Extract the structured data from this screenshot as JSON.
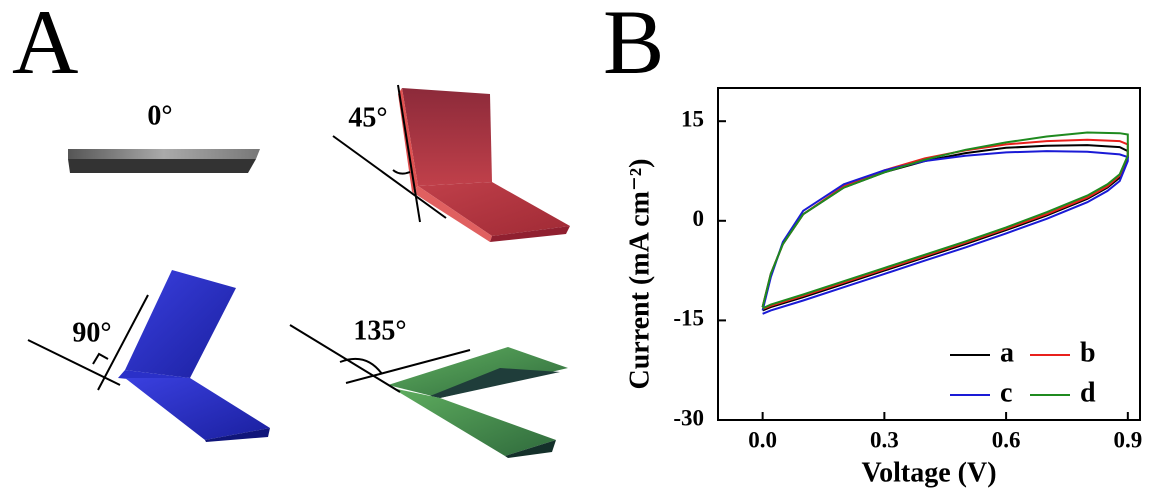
{
  "panel_labels": [
    "A",
    "B"
  ],
  "angle_labels": [
    "0°",
    "45°",
    "90°",
    "135°"
  ],
  "chart_data": {
    "type": "line",
    "x_label": "Voltage (V)",
    "y_label": "Current (mA cm⁻²)",
    "x": [
      0,
      0.02,
      0.05,
      0.1,
      0.2,
      0.3,
      0.4,
      0.5,
      0.6,
      0.7,
      0.8,
      0.88,
      0.9,
      0.9,
      0.88,
      0.85,
      0.8,
      0.7,
      0.6,
      0.5,
      0.4,
      0.3,
      0.2,
      0.1,
      0.02,
      0
    ],
    "series": [
      {
        "name": "a",
        "color": "#000000",
        "values": [
          -13,
          -8,
          -3.5,
          1,
          5,
          7.3,
          9,
          10.2,
          11,
          11.3,
          11.4,
          11.1,
          10.5,
          9.5,
          6.5,
          5,
          3.3,
          0.8,
          -1.4,
          -3.5,
          -5.5,
          -7.5,
          -9.5,
          -11.5,
          -13,
          -13.5
        ]
      },
      {
        "name": "b",
        "color": "#e8201c",
        "values": [
          -13,
          -8,
          -3.5,
          1,
          5.2,
          7.6,
          9.4,
          10.6,
          11.5,
          12,
          12.2,
          12,
          11.5,
          9.8,
          6.8,
          5.2,
          3.5,
          1,
          -1.2,
          -3.3,
          -5.3,
          -7.3,
          -9.3,
          -11.3,
          -12.8,
          -13.3
        ]
      },
      {
        "name": "c",
        "color": "#1a1ad6",
        "values": [
          -13.5,
          -8.5,
          -3.2,
          1.5,
          5.5,
          7.6,
          9,
          9.8,
          10.3,
          10.5,
          10.4,
          10,
          9.6,
          9,
          6,
          4.5,
          2.8,
          0.3,
          -1.9,
          -4,
          -6,
          -8,
          -10,
          -12,
          -13.5,
          -14
        ]
      },
      {
        "name": "d",
        "color": "#1f8a1f",
        "values": [
          -13,
          -8,
          -3.5,
          1,
          5,
          7.3,
          9.2,
          10.7,
          11.8,
          12.7,
          13.3,
          13.2,
          13,
          9.8,
          7,
          5.5,
          3.8,
          1.3,
          -1,
          -3.1,
          -5.1,
          -7.1,
          -9.1,
          -11.1,
          -12.6,
          -13.2
        ]
      }
    ],
    "xlim": [
      -0.11,
      0.93
    ],
    "ylim": [
      -30,
      20
    ],
    "xticks": [
      {
        "value": 0,
        "label": "0.0"
      },
      0.3,
      0.6,
      0.9
    ],
    "yticks": [
      -30,
      -15,
      0,
      15
    ],
    "legend": "lower right"
  }
}
